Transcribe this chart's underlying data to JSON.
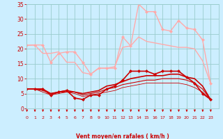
{
  "bg_color": "#cceeff",
  "grid_color": "#99cccc",
  "x_max": 24,
  "y_min": 0,
  "y_max": 35,
  "xlabel": "Vent moyen/en rafales ( km/h )",
  "xlabel_color": "#cc0000",
  "tick_color": "#cc0000",
  "arrow_color": "#cc0000",
  "yticks": [
    0,
    5,
    10,
    15,
    20,
    25,
    30,
    35
  ],
  "series": [
    {
      "x": [
        0,
        1,
        2,
        3,
        4,
        5,
        6,
        7,
        8,
        9,
        10,
        11,
        12,
        13,
        14,
        15,
        16,
        17,
        18,
        19,
        20,
        21,
        22,
        23
      ],
      "y": [
        21.2,
        21.3,
        21.3,
        15.5,
        18.5,
        19.0,
        19.0,
        15.5,
        11.5,
        13.5,
        13.5,
        13.5,
        24.0,
        21.0,
        35.0,
        32.5,
        32.5,
        26.5,
        26.0,
        29.5,
        27.0,
        26.5,
        23.0,
        8.5
      ],
      "color": "#ffaaaa",
      "lw": 1.0,
      "marker": "D",
      "ms": 2
    },
    {
      "x": [
        0,
        1,
        2,
        3,
        4,
        5,
        6,
        7,
        8,
        9,
        10,
        11,
        12,
        13,
        14,
        15,
        16,
        17,
        18,
        19,
        20,
        21,
        22,
        23
      ],
      "y": [
        21.2,
        21.3,
        18.5,
        18.5,
        19.0,
        15.5,
        15.5,
        12.0,
        11.5,
        13.5,
        13.5,
        14.0,
        20.5,
        21.0,
        24.0,
        22.5,
        22.0,
        21.5,
        21.0,
        20.5,
        20.5,
        20.0,
        16.0,
        8.5
      ],
      "color": "#ffaaaa",
      "lw": 1.0,
      "marker": null,
      "ms": 0
    },
    {
      "x": [
        0,
        1,
        2,
        3,
        4,
        5,
        6,
        7,
        8,
        9,
        10,
        11,
        12,
        13,
        14,
        15,
        16,
        17,
        18,
        19,
        20,
        21,
        22,
        23
      ],
      "y": [
        6.5,
        6.5,
        6.5,
        4.5,
        5.5,
        6.0,
        3.5,
        3.0,
        4.5,
        4.5,
        6.5,
        7.5,
        9.5,
        12.5,
        12.5,
        12.5,
        11.5,
        12.5,
        12.5,
        12.5,
        10.5,
        8.5,
        5.0,
        3.0
      ],
      "color": "#cc0000",
      "lw": 1.2,
      "marker": "D",
      "ms": 2
    },
    {
      "x": [
        0,
        1,
        2,
        3,
        4,
        5,
        6,
        7,
        8,
        9,
        10,
        11,
        12,
        13,
        14,
        15,
        16,
        17,
        18,
        19,
        20,
        21,
        22,
        23
      ],
      "y": [
        6.5,
        6.5,
        6.5,
        5.0,
        5.5,
        6.0,
        5.5,
        5.0,
        5.5,
        6.0,
        7.5,
        8.0,
        9.0,
        10.0,
        10.5,
        11.0,
        11.0,
        11.0,
        11.5,
        11.5,
        10.5,
        10.0,
        7.5,
        3.0
      ],
      "color": "#cc0000",
      "lw": 1.2,
      "marker": null,
      "ms": 0
    },
    {
      "x": [
        0,
        1,
        2,
        3,
        4,
        5,
        6,
        7,
        8,
        9,
        10,
        11,
        12,
        13,
        14,
        15,
        16,
        17,
        18,
        19,
        20,
        21,
        22,
        23
      ],
      "y": [
        6.5,
        6.5,
        6.0,
        5.0,
        5.5,
        5.5,
        5.5,
        4.5,
        5.0,
        5.5,
        6.5,
        7.0,
        8.0,
        8.5,
        9.0,
        9.5,
        9.5,
        10.0,
        10.0,
        10.0,
        9.5,
        8.5,
        6.5,
        3.0
      ],
      "color": "#cc0000",
      "lw": 0.8,
      "marker": null,
      "ms": 0
    },
    {
      "x": [
        0,
        1,
        2,
        3,
        4,
        5,
        6,
        7,
        8,
        9,
        10,
        11,
        12,
        13,
        14,
        15,
        16,
        17,
        18,
        19,
        20,
        21,
        22,
        23
      ],
      "y": [
        6.5,
        6.5,
        5.5,
        4.5,
        5.0,
        5.5,
        5.0,
        4.0,
        4.5,
        5.0,
        5.5,
        6.0,
        7.0,
        7.5,
        8.0,
        8.5,
        8.5,
        8.5,
        8.5,
        8.5,
        8.0,
        7.0,
        5.5,
        3.0
      ],
      "color": "#cc0000",
      "lw": 0.6,
      "marker": null,
      "ms": 0
    }
  ]
}
